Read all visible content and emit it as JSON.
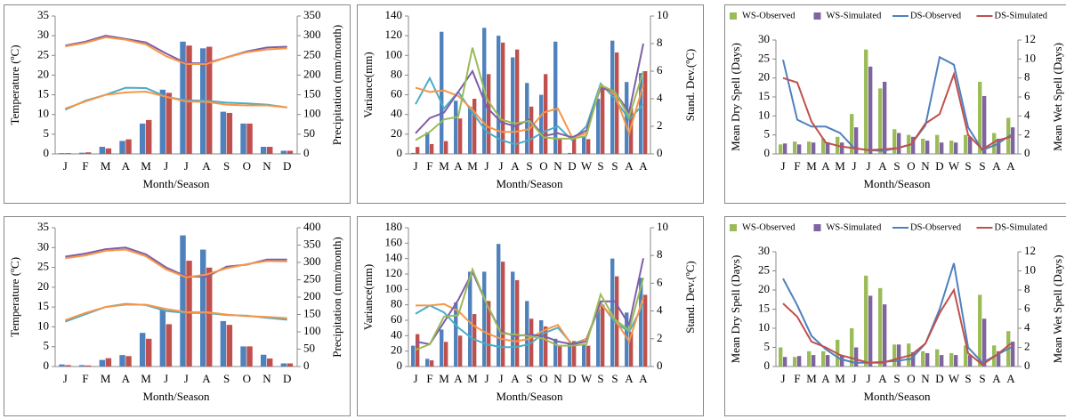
{
  "chart_data": [
    {
      "type": "bar-line",
      "x_label": "Month/Season",
      "y_label": "Temperature (ºC)",
      "y2_label": "Precipitation (mm/month)",
      "categories": [
        "J",
        "F",
        "M",
        "A",
        "M",
        "J",
        "J",
        "A",
        "S",
        "O",
        "N",
        "D"
      ],
      "ylim": [
        0,
        35
      ],
      "yticks": [
        0,
        5,
        10,
        15,
        20,
        25,
        30,
        35
      ],
      "y2lim": [
        0,
        350
      ],
      "y2ticks": [
        0,
        50,
        100,
        150,
        200,
        250,
        300,
        350
      ],
      "series": [
        {
          "kind": "bar",
          "axis": "y2",
          "color": "#4f81bd",
          "values": [
            2,
            3,
            18,
            33,
            77,
            163,
            285,
            268,
            107,
            77,
            18,
            8
          ]
        },
        {
          "kind": "bar",
          "axis": "y2",
          "color": "#c0504d",
          "values": [
            2,
            4,
            14,
            37,
            86,
            155,
            275,
            272,
            104,
            77,
            18,
            8
          ]
        },
        {
          "kind": "line",
          "axis": "y",
          "color": "#7f5fa8",
          "values": [
            27.5,
            28.5,
            30,
            29.2,
            28.3,
            25.5,
            23,
            23,
            24.5,
            26,
            27,
            27.2
          ]
        },
        {
          "kind": "line",
          "axis": "y",
          "color": "#f79646",
          "values": [
            27.3,
            28.2,
            29.6,
            29,
            27.8,
            24.8,
            22.8,
            22.8,
            24.5,
            25.8,
            26.5,
            26.8
          ]
        },
        {
          "kind": "line",
          "axis": "y",
          "color": "#4bacc6",
          "values": [
            11.2,
            13.5,
            15,
            16.8,
            16.7,
            14.5,
            13.6,
            13.5,
            13,
            12.8,
            12.5,
            11.8
          ]
        },
        {
          "kind": "line",
          "axis": "y",
          "color": "#f79646",
          "values": [
            11.5,
            13.3,
            15,
            15.6,
            15.8,
            14.5,
            13.3,
            13.2,
            12.5,
            12.3,
            12.3,
            11.8
          ]
        }
      ]
    },
    {
      "type": "bar-line",
      "x_label": "Month/Season",
      "y_label": "Variance(mm)",
      "y2_label": "Stand. Dev.(ºC)",
      "categories": [
        "J",
        "F",
        "M",
        "A",
        "M",
        "J",
        "J",
        "A",
        "S",
        "O",
        "N",
        "D",
        "W",
        "S",
        "S",
        "A",
        "A"
      ],
      "ylim": [
        0,
        140
      ],
      "yticks": [
        0,
        20,
        40,
        60,
        80,
        100,
        120,
        140
      ],
      "y2lim": [
        0,
        10
      ],
      "y2ticks": [
        0,
        2,
        4,
        6,
        8,
        10
      ],
      "series": [
        {
          "kind": "bar",
          "axis": "y",
          "color": "#4f81bd",
          "values": [
            1,
            22,
            124,
            54,
            48,
            128,
            120,
            98,
            72,
            60,
            114,
            1,
            18,
            56,
            115,
            73,
            82
          ]
        },
        {
          "kind": "bar",
          "axis": "y",
          "color": "#c0504d",
          "values": [
            7,
            10,
            13,
            36,
            56,
            81,
            113,
            106,
            48,
            81,
            15,
            17,
            15,
            67,
            103,
            47,
            84
          ]
        },
        {
          "kind": "line",
          "axis": "y2",
          "color": "#4bacc6",
          "values": [
            3.6,
            5.5,
            3.3,
            4.5,
            3,
            1.6,
            1,
            0.7,
            1,
            1.6,
            2,
            1,
            2,
            5.1,
            4,
            2.5,
            3.6
          ]
        },
        {
          "kind": "line",
          "axis": "y2",
          "color": "#f79646",
          "values": [
            4.8,
            4.5,
            4.6,
            4.2,
            3.2,
            2,
            1.6,
            1.6,
            1.8,
            3,
            3.3,
            1.2,
            1.5,
            4.9,
            4.3,
            1.5,
            5
          ]
        },
        {
          "kind": "line",
          "axis": "y2",
          "color": "#7f5fa8",
          "values": [
            1.5,
            2.6,
            3,
            4.5,
            6,
            3.4,
            2.3,
            2,
            2.5,
            1.3,
            1.5,
            1.2,
            1.7,
            4.8,
            4.5,
            3,
            8
          ]
        },
        {
          "kind": "line",
          "axis": "y2",
          "color": "#9bbb59",
          "values": [
            1,
            1.6,
            2.5,
            2.7,
            7.7,
            4,
            2.5,
            2.2,
            2.4,
            1.2,
            1.1,
            1.1,
            1.3,
            5,
            4.5,
            2.7,
            6
          ]
        }
      ]
    },
    {
      "type": "bar-line",
      "x_label": "Month/Season",
      "y_label": "Mean Dry Spell (Days)",
      "y2_label": "Mean Wet Spell (Days)",
      "categories": [
        "J",
        "F",
        "M",
        "A",
        "M",
        "J",
        "J",
        "A",
        "S",
        "O",
        "N",
        "D",
        "W",
        "S",
        "S",
        "A",
        "A"
      ],
      "ylim": [
        0,
        30
      ],
      "yticks": [
        0,
        5,
        10,
        15,
        20,
        25,
        30
      ],
      "y2lim": [
        0,
        12
      ],
      "y2ticks": [
        0,
        2,
        4,
        6,
        8,
        10,
        12
      ],
      "legend": "top",
      "series": [
        {
          "name": "WS-Observed",
          "kind": "bar",
          "axis": "y2",
          "color": "#9bbb59",
          "values": [
            1,
            1.3,
            1.3,
            1.6,
            1.8,
            4.2,
            11,
            6.9,
            2.6,
            2,
            1.6,
            2,
            1.4,
            2,
            7.6,
            2.2,
            3.8
          ]
        },
        {
          "name": "WS-Simulated",
          "kind": "bar",
          "axis": "y2",
          "color": "#8064a2",
          "values": [
            1.1,
            1,
            1.2,
            1.2,
            1.2,
            2.8,
            9.2,
            7.6,
            2.2,
            1.8,
            1.4,
            1.2,
            1.2,
            1.8,
            6.1,
            1.6,
            2.8
          ]
        },
        {
          "name": "DS-Observed",
          "kind": "line",
          "axis": "y",
          "color": "#4f81bd",
          "values": [
            24.8,
            9,
            7.2,
            7.2,
            5.5,
            1.5,
            1,
            0.8,
            1.5,
            2.5,
            7.5,
            25.5,
            23.5,
            7,
            1,
            2.5,
            5
          ]
        },
        {
          "name": "DS-Simulated",
          "kind": "line",
          "axis": "y",
          "color": "#c0504d",
          "values": [
            20,
            18.8,
            8.5,
            3,
            2,
            1.5,
            1,
            1.2,
            1.5,
            2.5,
            8,
            10.5,
            21,
            5,
            1.2,
            3.5,
            4.5
          ]
        }
      ]
    },
    {
      "type": "bar-line",
      "x_label": "Month/Season",
      "y_label": "Temperature (ºC)",
      "y2_label": "Precipitation (mm/month)",
      "categories": [
        "J",
        "F",
        "M",
        "A",
        "M",
        "J",
        "J",
        "A",
        "S",
        "O",
        "N",
        "D"
      ],
      "ylim": [
        0,
        35
      ],
      "yticks": [
        0,
        5,
        10,
        15,
        20,
        25,
        30,
        35
      ],
      "y2lim": [
        0,
        400
      ],
      "y2ticks": [
        0,
        50,
        100,
        150,
        200,
        250,
        300,
        350,
        400
      ],
      "series": [
        {
          "kind": "bar",
          "axis": "y2",
          "color": "#4f81bd",
          "values": [
            6,
            4,
            19,
            33,
            97,
            163,
            378,
            337,
            131,
            58,
            34,
            9
          ]
        },
        {
          "kind": "bar",
          "axis": "y2",
          "color": "#c0504d",
          "values": [
            4,
            3,
            24,
            30,
            80,
            122,
            305,
            285,
            120,
            58,
            23,
            9
          ]
        },
        {
          "kind": "line",
          "axis": "y",
          "color": "#7f5fa8",
          "values": [
            27.7,
            28.5,
            29.6,
            30,
            28.3,
            25,
            22.7,
            22.6,
            25.2,
            25.7,
            27,
            27
          ]
        },
        {
          "kind": "line",
          "axis": "y",
          "color": "#f79646",
          "values": [
            27.3,
            28,
            29.2,
            29.5,
            27.8,
            24.5,
            22.5,
            23.2,
            24.8,
            25.8,
            26.6,
            26.5
          ]
        },
        {
          "kind": "line",
          "axis": "y",
          "color": "#4bacc6",
          "values": [
            11.3,
            13.2,
            15,
            15.8,
            15.5,
            14,
            13.5,
            13.5,
            13,
            12.8,
            12.3,
            11.8
          ]
        },
        {
          "kind": "line",
          "axis": "y",
          "color": "#f79646",
          "values": [
            11.7,
            13.5,
            15,
            15.6,
            15.6,
            14.5,
            13.7,
            13.7,
            13.1,
            12.7,
            12.5,
            12.2
          ]
        }
      ]
    },
    {
      "type": "bar-line",
      "x_label": "Month/Season",
      "y_label": "Variance(mm)",
      "y2_label": "Stand. Dev.(ºC)",
      "categories": [
        "J",
        "F",
        "M",
        "A",
        "M",
        "J",
        "J",
        "A",
        "S",
        "O",
        "N",
        "D",
        "W",
        "S",
        "S",
        "A",
        "A"
      ],
      "ylim": [
        0,
        180
      ],
      "yticks": [
        0,
        20,
        40,
        60,
        80,
        100,
        120,
        140,
        160,
        180
      ],
      "y2lim": [
        0,
        10
      ],
      "y2ticks": [
        0,
        2,
        4,
        6,
        8,
        10
      ],
      "series": [
        {
          "kind": "bar",
          "axis": "y",
          "color": "#4f81bd",
          "values": [
            27,
            10,
            48,
            83,
            123,
            123,
            159,
            123,
            85,
            60,
            36,
            30,
            28,
            75,
            140,
            70,
            115
          ]
        },
        {
          "kind": "bar",
          "axis": "y",
          "color": "#c0504d",
          "values": [
            42,
            8,
            32,
            40,
            68,
            85,
            136,
            112,
            62,
            52,
            28,
            33,
            27,
            80,
            117,
            45,
            93
          ]
        },
        {
          "kind": "line",
          "axis": "y2",
          "color": "#4bacc6",
          "values": [
            3.8,
            4.4,
            3.9,
            2.8,
            2,
            1.6,
            1.4,
            1.4,
            1.6,
            2.4,
            2.8,
            1.6,
            2,
            4.6,
            3.2,
            2.5,
            4.5
          ]
        },
        {
          "kind": "line",
          "axis": "y2",
          "color": "#f79646",
          "values": [
            4.4,
            4.4,
            4.5,
            4,
            3,
            2.4,
            2,
            1.8,
            2,
            2.6,
            3,
            1.5,
            2,
            4.5,
            3.4,
            1.8,
            5
          ]
        },
        {
          "kind": "line",
          "axis": "y2",
          "color": "#7f5fa8",
          "values": [
            1.8,
            1.6,
            3.2,
            4.8,
            6.8,
            4.5,
            2.5,
            2.2,
            2.3,
            2.2,
            1.8,
            1.6,
            1.8,
            4.7,
            4.7,
            3,
            7.8
          ]
        },
        {
          "kind": "line",
          "axis": "y2",
          "color": "#9bbb59",
          "values": [
            1.2,
            1.6,
            3.6,
            3.7,
            7,
            4.5,
            2.4,
            2.3,
            2.2,
            2,
            1.5,
            1.5,
            1.6,
            5.2,
            3.4,
            2.6,
            6.4
          ]
        }
      ]
    },
    {
      "type": "bar-line",
      "x_label": "Month/Season",
      "y_label": "Mean Dry Spell (Days)",
      "y2_label": "Mean Wet Spell (Days)",
      "categories": [
        "J",
        "F",
        "M",
        "A",
        "M",
        "J",
        "J",
        "A",
        "S",
        "O",
        "N",
        "D",
        "W",
        "S",
        "S",
        "A",
        "A"
      ],
      "ylim": [
        0,
        30
      ],
      "yticks": [
        0,
        5,
        10,
        15,
        20,
        25,
        30
      ],
      "y2lim": [
        0,
        12
      ],
      "y2ticks": [
        0,
        2,
        4,
        6,
        8,
        10,
        12
      ],
      "legend": "top",
      "series": [
        {
          "name": "WS-Observed",
          "kind": "bar",
          "axis": "y2",
          "color": "#9bbb59",
          "values": [
            2,
            1,
            1.6,
            1.6,
            2.8,
            4,
            9.5,
            8.2,
            2.3,
            2.4,
            1.6,
            1.8,
            1.4,
            2.2,
            7.5,
            2.2,
            3.7
          ]
        },
        {
          "name": "WS-Simulated",
          "kind": "bar",
          "axis": "y2",
          "color": "#8064a2",
          "values": [
            1,
            1.1,
            1.2,
            1.2,
            1.2,
            2,
            7.4,
            6.5,
            2.3,
            1.5,
            1.4,
            1.2,
            1.2,
            1.2,
            5,
            1.6,
            2.6
          ]
        },
        {
          "name": "DS-Observed",
          "kind": "line",
          "axis": "y",
          "color": "#4f81bd",
          "values": [
            23,
            16,
            8,
            4.5,
            2,
            1,
            1,
            1.2,
            1.5,
            2,
            6,
            15,
            27,
            5,
            1,
            3,
            5
          ]
        },
        {
          "name": "DS-Simulated",
          "kind": "line",
          "axis": "y",
          "color": "#c0504d",
          "values": [
            16.5,
            13,
            6.5,
            5,
            3,
            2,
            1,
            1,
            2,
            3,
            6,
            14,
            20,
            3.5,
            0.5,
            3,
            6
          ]
        }
      ]
    }
  ]
}
